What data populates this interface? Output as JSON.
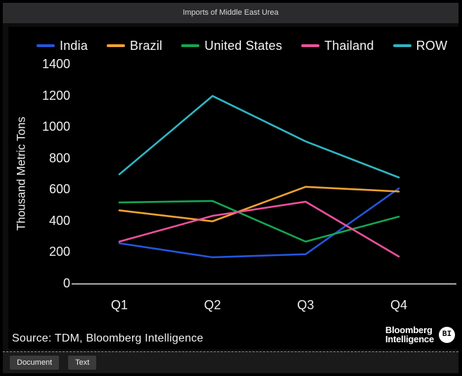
{
  "window": {
    "title": "Imports of Middle East Urea"
  },
  "chart_data": {
    "type": "line",
    "title": "Imports of Middle East Urea",
    "xlabel": "",
    "ylabel": "Thousand Metric Tons",
    "categories": [
      "Q1",
      "Q2",
      "Q3",
      "Q4"
    ],
    "series": [
      {
        "name": "India",
        "color": "#2456dd",
        "values": [
          260,
          170,
          190,
          610
        ]
      },
      {
        "name": "Brazil",
        "color": "#f0a232",
        "values": [
          470,
          400,
          620,
          590
        ]
      },
      {
        "name": "United States",
        "color": "#14a551",
        "values": [
          520,
          530,
          270,
          430
        ]
      },
      {
        "name": "Thailand",
        "color": "#ee509c",
        "values": [
          270,
          435,
          525,
          175
        ]
      },
      {
        "name": "ROW",
        "color": "#30b5c4",
        "values": [
          700,
          1200,
          910,
          680
        ]
      }
    ],
    "ylim": [
      0,
      1400
    ],
    "yticks": [
      0,
      200,
      400,
      600,
      800,
      1000,
      1200,
      1400
    ],
    "grid": false,
    "legend_position": "top",
    "plot_background": "#000000",
    "axis_color": "#e0e0e0",
    "text_color": "#f0f0f0"
  },
  "source_line": "Source: TDM, Bloomberg Intelligence",
  "logo": {
    "line1": "Bloomberg",
    "line2": "Intelligence",
    "badge": "BI"
  },
  "toolbar": {
    "buttons": [
      {
        "label": "Document"
      },
      {
        "label": "Text"
      }
    ]
  }
}
